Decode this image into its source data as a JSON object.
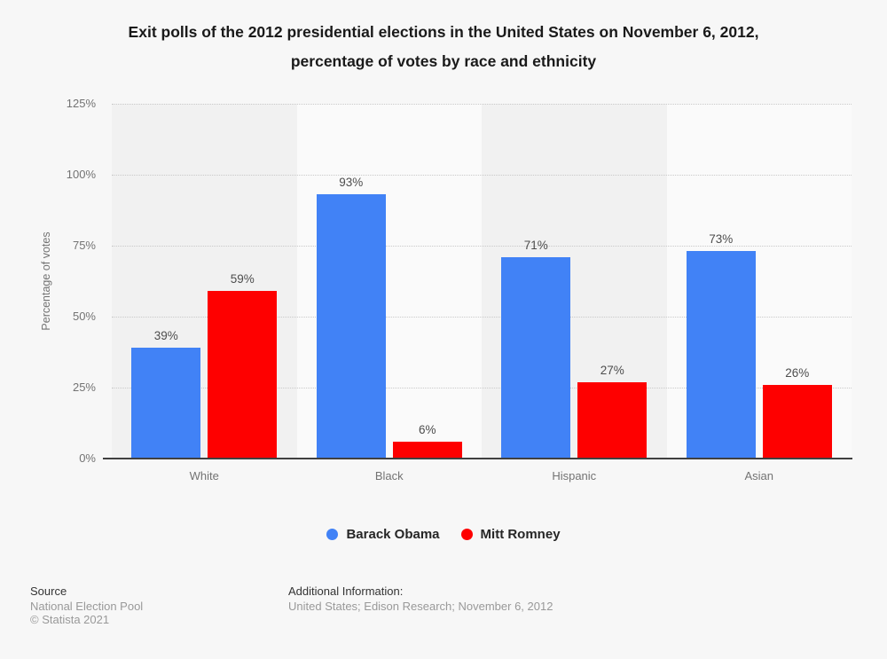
{
  "title": {
    "lines": [
      "Exit polls of the 2012 presidential elections in the United States on November 6, 2012,",
      "percentage of votes by race and ethnicity"
    ]
  },
  "chart_data": {
    "type": "bar",
    "categories": [
      "White",
      "Black",
      "Hispanic",
      "Asian"
    ],
    "series": [
      {
        "name": "Barack Obama",
        "color": "#4182f6",
        "values": [
          39,
          93,
          71,
          73
        ]
      },
      {
        "name": "Mitt Romney",
        "color": "#fe0000",
        "values": [
          59,
          6,
          27,
          26
        ]
      }
    ],
    "title": "Exit polls of the 2012 presidential elections in the United States on November 6, 2012, percentage of votes by race and ethnicity",
    "xlabel": "",
    "ylabel": "Percentage of votes",
    "ylim": [
      0,
      125
    ],
    "yticks": [
      0,
      25,
      50,
      75,
      100,
      125
    ],
    "ytick_labels": [
      "0%",
      "25%",
      "50%",
      "75%",
      "100%",
      "125%"
    ],
    "value_label_suffix": "%",
    "grid": "horizontal-dotted",
    "legend_position": "bottom",
    "band_colors": {
      "dark": "#f1f1f1",
      "light": "#fafafa"
    }
  },
  "footer": {
    "source_heading": "Source",
    "source_name": "National Election Pool",
    "copyright": "© Statista 2021",
    "additional_heading": "Additional Information:",
    "additional_text": "United States; Edison Research; November 6, 2012"
  }
}
